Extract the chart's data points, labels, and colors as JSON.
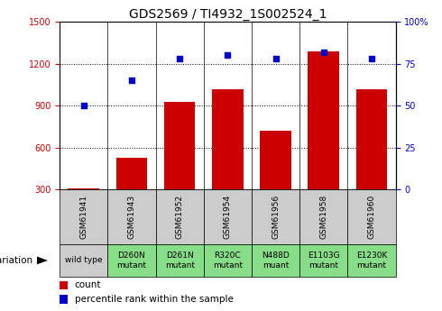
{
  "title": "GDS2569 / TI4932_1S002524_1",
  "samples": [
    "GSM61941",
    "GSM61943",
    "GSM61952",
    "GSM61954",
    "GSM61956",
    "GSM61958",
    "GSM61960"
  ],
  "genotypes": [
    "wild type",
    "D260N\nmutant",
    "D261N\nmutant",
    "R320C\nmutant",
    "N488D\nmuant",
    "E1103G\nmutant",
    "E1230K\nmutant"
  ],
  "counts": [
    310,
    530,
    930,
    1020,
    720,
    1290,
    1020
  ],
  "percentiles": [
    50,
    65,
    78,
    80,
    78,
    82,
    78
  ],
  "bar_color": "#cc0000",
  "dot_color": "#0000cc",
  "left_ylim": [
    300,
    1500
  ],
  "left_yticks": [
    300,
    600,
    900,
    1200,
    1500
  ],
  "right_ylim": [
    0,
    100
  ],
  "right_yticks": [
    0,
    25,
    50,
    75,
    100
  ],
  "right_yticklabels": [
    "0",
    "25",
    "50",
    "75",
    "100%"
  ],
  "grid_vals": [
    600,
    900,
    1200
  ],
  "bg_color_sample_row": "#cccccc",
  "bg_color_genotype_wt": "#cccccc",
  "bg_color_genotype_mut": "#88dd88",
  "font_size_title": 10,
  "font_size_tick": 7,
  "font_size_sample": 6.5,
  "font_size_genotype": 6.5,
  "font_size_legend": 7.5,
  "font_size_geno_label": 7.5
}
